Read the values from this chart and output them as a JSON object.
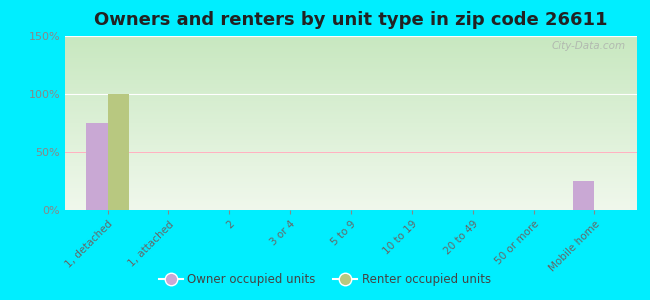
{
  "title": "Owners and renters by unit type in zip code 26611",
  "categories": [
    "1, detached",
    "1, attached",
    "2",
    "3 or 4",
    "5 to 9",
    "10 to 19",
    "20 to 49",
    "50 or more",
    "Mobile home"
  ],
  "owner_values": [
    75,
    0,
    0,
    0,
    0,
    0,
    0,
    0,
    25
  ],
  "renter_values": [
    100,
    0,
    0,
    0,
    0,
    0,
    0,
    0,
    0
  ],
  "owner_color": "#c9a8d4",
  "renter_color": "#b8c880",
  "background_outer": "#00eeff",
  "background_plot_top": "#c8e8c0",
  "background_plot_bottom": "#f0f8ec",
  "ylim": [
    0,
    150
  ],
  "yticks": [
    0,
    50,
    100,
    150
  ],
  "bar_width": 0.35,
  "title_fontsize": 13,
  "watermark": "City-Data.com",
  "tick_color": "#888888",
  "label_color": "#666666"
}
